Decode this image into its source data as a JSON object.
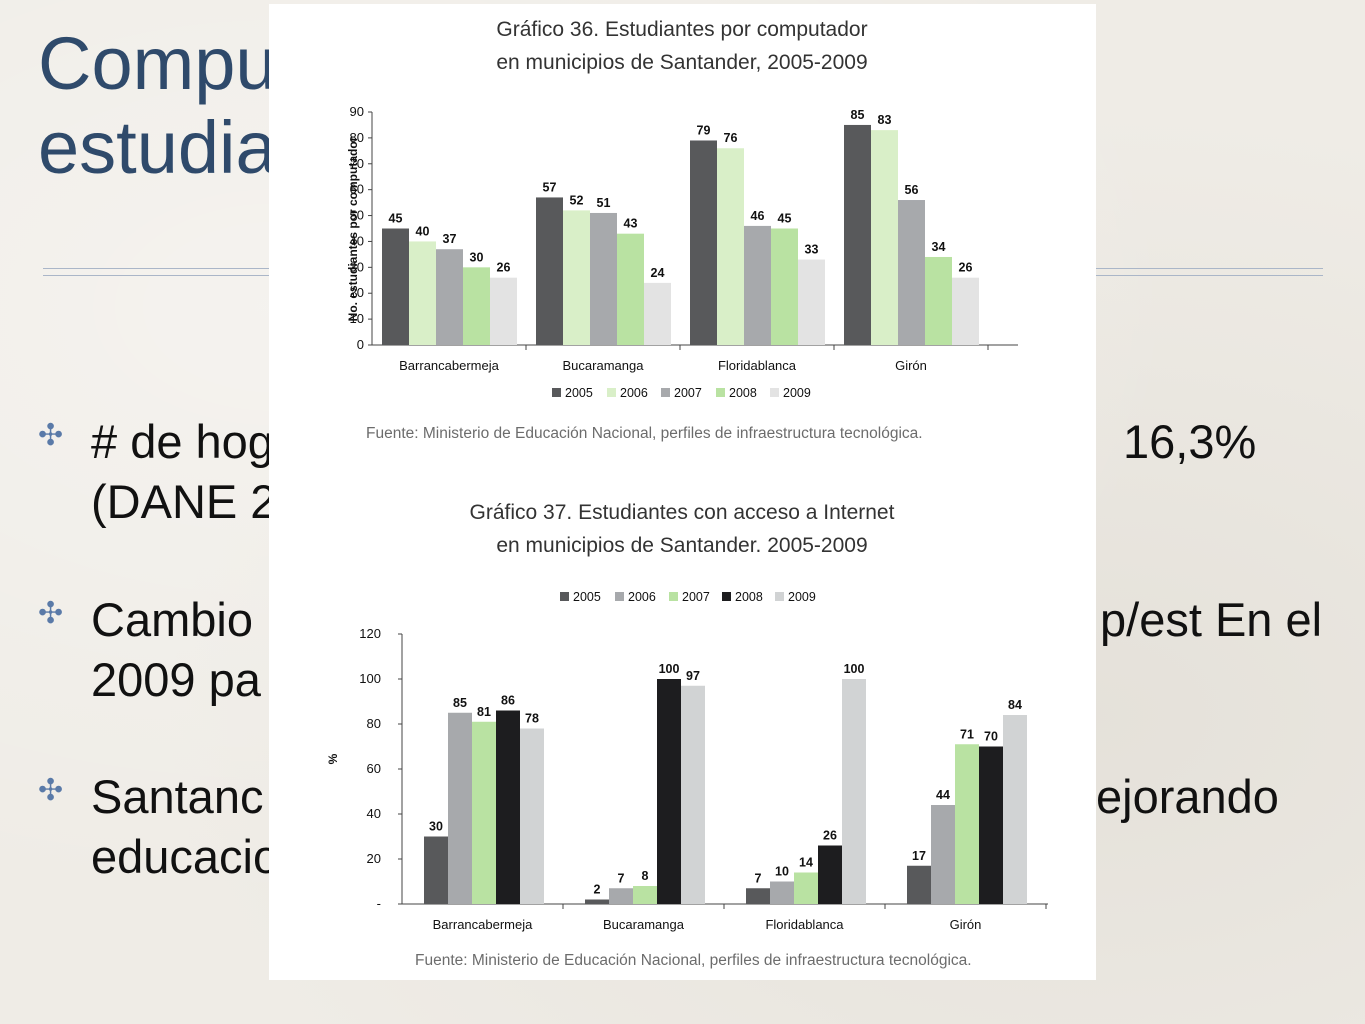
{
  "slide": {
    "title_line1": "Compu",
    "title_line2": "estudia",
    "bullets": [
      {
        "line1": "# de hog",
        "line1_right": "16,3%",
        "line2": "(DANE 2"
      },
      {
        "line1": "Cambio",
        "line1_right": "p/est En el",
        "line2": "2009 pa"
      },
      {
        "line1": "Santanc",
        "line1_right": "ejorando",
        "line2": "educacio"
      }
    ],
    "bullet_mark": "✣"
  },
  "chart_data": [
    {
      "type": "bar",
      "title_lines": [
        "Gráfico 36. Estudiantes por computador",
        "en municipios de Santander, 2005-2009"
      ],
      "ylabel": "No. estudiantes por computador",
      "xlabel": "",
      "ylim": [
        0,
        90
      ],
      "yticks": [
        "0",
        "10",
        "20",
        "30",
        "40",
        "50",
        "60",
        "70",
        "80",
        "90"
      ],
      "categories": [
        "Barrancabermeja",
        "Bucaramanga",
        "Floridablanca",
        "Girón"
      ],
      "series": [
        {
          "name": "2005",
          "color": "#58595b",
          "values": [
            45,
            57,
            79,
            85
          ]
        },
        {
          "name": "2006",
          "color": "#d9efc8",
          "values": [
            40,
            52,
            76,
            83
          ]
        },
        {
          "name": "2007",
          "color": "#a7a9ac",
          "values": [
            37,
            51,
            46,
            56
          ]
        },
        {
          "name": "2008",
          "color": "#b9e2a2",
          "values": [
            30,
            43,
            45,
            34
          ]
        },
        {
          "name": "2009",
          "color": "#e3e3e3",
          "values": [
            26,
            24,
            33,
            26
          ]
        }
      ],
      "legend_position": "bottom",
      "source": "Fuente: Ministerio de Educación Nacional, perfiles de infraestructura tecnológica."
    },
    {
      "type": "bar",
      "title_lines": [
        "Gráfico 37.  Estudiantes con acceso a Internet",
        "en municipios de Santander. 2005-2009"
      ],
      "ylabel": "%",
      "xlabel": "",
      "ylim": [
        0,
        120
      ],
      "yticks": [
        "-",
        "20",
        "40",
        "60",
        "80",
        "100",
        "120"
      ],
      "categories": [
        "Barrancabermeja",
        "Bucaramanga",
        "Floridablanca",
        "Girón"
      ],
      "series": [
        {
          "name": "2005",
          "color": "#58595b",
          "values": [
            30,
            2,
            7,
            17
          ]
        },
        {
          "name": "2006",
          "color": "#a7a9ac",
          "values": [
            85,
            7,
            10,
            44
          ]
        },
        {
          "name": "2007",
          "color": "#b9e2a2",
          "values": [
            81,
            8,
            14,
            71
          ]
        },
        {
          "name": "2008",
          "color": "#1d1d1f",
          "values": [
            86,
            100,
            26,
            70
          ]
        },
        {
          "name": "2009",
          "color": "#d1d3d4",
          "values": [
            78,
            97,
            100,
            84
          ]
        }
      ],
      "legend_position": "top",
      "source": "Fuente: Ministerio de Educación Nacional, perfiles de infraestructura tecnológica."
    }
  ]
}
